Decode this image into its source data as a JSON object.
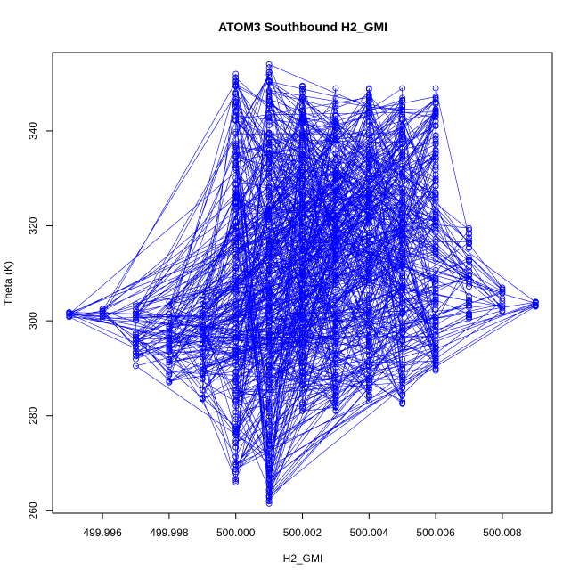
{
  "chart_data": {
    "type": "scatter",
    "title": "ATOM3 Southbound H2_GMI",
    "xlabel": "H2_GMI",
    "ylabel": "Theta (K)",
    "xlim": [
      499.9945,
      500.0095
    ],
    "ylim": [
      259.5,
      356.5
    ],
    "x_ticks": [
      499.996,
      499.998,
      500.0,
      500.002,
      500.004,
      500.006,
      500.008
    ],
    "x_tick_labels": [
      "499.996",
      "499.998",
      "500.000",
      "500.002",
      "500.004",
      "500.006",
      "500.008"
    ],
    "y_ticks": [
      260,
      280,
      300,
      320,
      340
    ],
    "y_tick_labels": [
      "260",
      "280",
      "300",
      "320",
      "340"
    ],
    "grid": false,
    "legend": "none",
    "point_style": "open-circle",
    "connected": true,
    "series_color": "#0000ff",
    "columns": [
      {
        "x": 499.995,
        "theta_min": 300.8,
        "theta_max": 301.8
      },
      {
        "x": 499.996,
        "theta_min": 300.5,
        "theta_max": 302.5
      },
      {
        "x": 499.997,
        "theta_min": 290.5,
        "theta_max": 303.5
      },
      {
        "x": 499.998,
        "theta_min": 287.0,
        "theta_max": 304.0
      },
      {
        "x": 499.999,
        "theta_min": 283.5,
        "theta_max": 305.5
      },
      {
        "x": 500.0,
        "theta_min": 266.0,
        "theta_max": 352.0
      },
      {
        "x": 500.001,
        "theta_min": 261.5,
        "theta_max": 354.0
      },
      {
        "x": 500.002,
        "theta_min": 281.0,
        "theta_max": 349.5
      },
      {
        "x": 500.003,
        "theta_min": 281.0,
        "theta_max": 349.0
      },
      {
        "x": 500.004,
        "theta_min": 283.0,
        "theta_max": 349.0
      },
      {
        "x": 500.005,
        "theta_min": 282.5,
        "theta_max": 349.0
      },
      {
        "x": 500.006,
        "theta_min": 289.5,
        "theta_max": 349.0
      },
      {
        "x": 500.007,
        "theta_min": 300.5,
        "theta_max": 319.5
      },
      {
        "x": 500.008,
        "theta_min": 302.0,
        "theta_max": 307.0
      },
      {
        "x": 500.009,
        "theta_min": 303.0,
        "theta_max": 304.0
      }
    ]
  }
}
